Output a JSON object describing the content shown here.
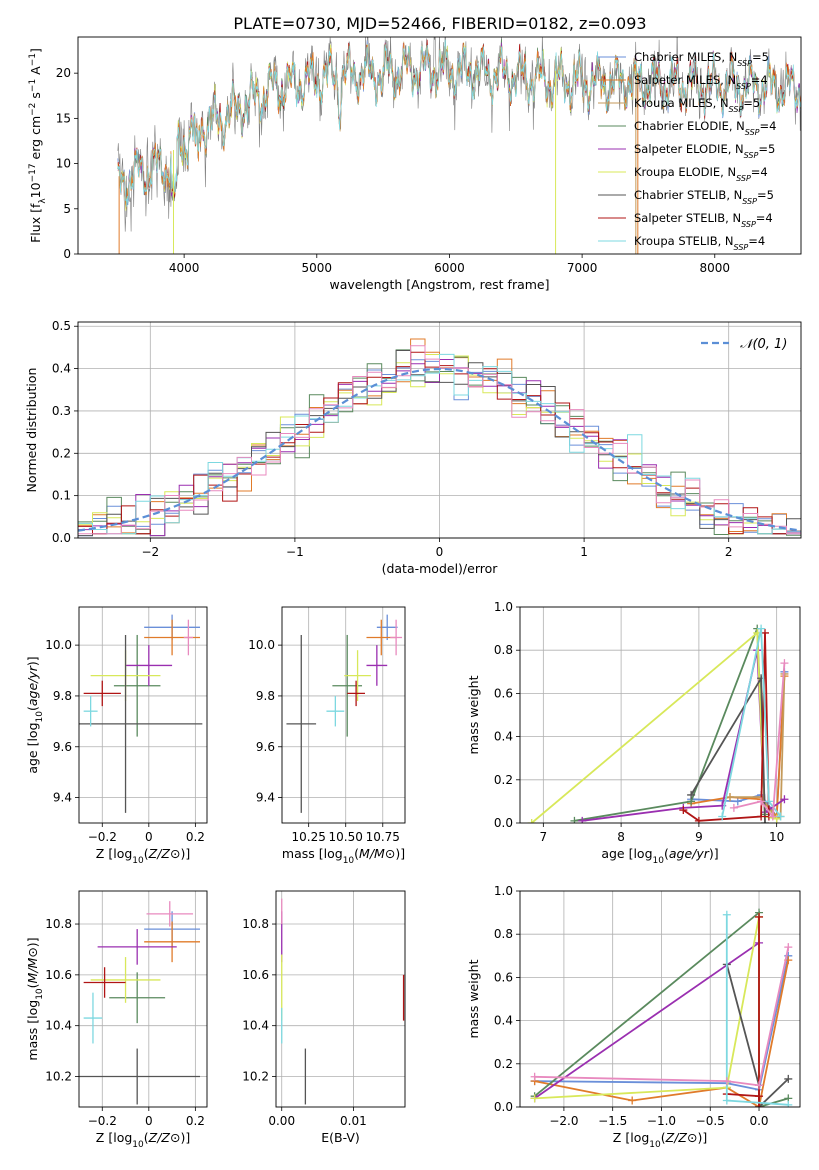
{
  "title": "PLATE=0730, MJD=52466, FIBERID=0182, z=0.093",
  "colors": {
    "Chabrier MILES": "#6a8fd9",
    "Salpeter MILES": "#e07b2a",
    "Kroupa MILES": "#c49a5a",
    "Chabrier ELODIE": "#5a8a5e",
    "Salpeter ELODIE": "#9a2fb0",
    "Kroupa ELODIE": "#d8e85a",
    "Chabrier STELIB": "#555555",
    "Salpeter STELIB": "#b01515",
    "Kroupa STELIB": "#7dd8e0",
    "Extra": "#e88abf",
    "Normal": "#5b8fd6"
  },
  "chart_data": [
    {
      "id": "spectrum",
      "type": "line",
      "title": "PLATE=0730, MJD=52466, FIBERID=0182, z=0.093",
      "xlabel": "wavelength [Angstrom, rest frame]",
      "ylabel": "Flux [f_λ10^-17 erg cm^-2 s^-1 A^-1]",
      "xlim": [
        3200,
        8650
      ],
      "ylim": [
        0,
        24
      ],
      "xticks": [
        4000,
        5000,
        6000,
        7000,
        8000
      ],
      "yticks": [
        0,
        5,
        10,
        15,
        20
      ],
      "grid": false,
      "legend_position": "top-right",
      "series": [
        {
          "name": "Chabrier MILES, N_SSP=5"
        },
        {
          "name": "Salpeter MILES, N_SSP=4"
        },
        {
          "name": "Kroupa MILES, N_SSP=5"
        },
        {
          "name": "Chabrier ELODIE, N_SSP=4"
        },
        {
          "name": "Salpeter ELODIE, N_SSP=5"
        },
        {
          "name": "Kroupa ELODIE, N_SSP=4"
        },
        {
          "name": "Chabrier STELIB, N_SSP=5"
        },
        {
          "name": "Salpeter STELIB, N_SSP=4"
        },
        {
          "name": "Kroupa STELIB, N_SSP=4"
        }
      ],
      "continuum": [
        [
          3500,
          7.5
        ],
        [
          3650,
          9
        ],
        [
          3800,
          9.5
        ],
        [
          3900,
          10
        ],
        [
          4000,
          12.5
        ],
        [
          4100,
          14
        ],
        [
          4300,
          15
        ],
        [
          4500,
          17
        ],
        [
          4700,
          18.5
        ],
        [
          4900,
          19
        ],
        [
          5000,
          19.5
        ],
        [
          5200,
          19.8
        ],
        [
          5500,
          20
        ],
        [
          5800,
          20.5
        ],
        [
          6000,
          20.3
        ],
        [
          6300,
          20
        ],
        [
          6600,
          19.5
        ],
        [
          7000,
          19
        ],
        [
          7400,
          19
        ],
        [
          7800,
          18.8
        ],
        [
          8300,
          18.5
        ],
        [
          8650,
          18.3
        ]
      ]
    },
    {
      "id": "residuals",
      "type": "step",
      "xlabel": "(data-model)/error",
      "ylabel": "Normed distribution",
      "xlim": [
        -2.5,
        2.5
      ],
      "ylim": [
        0,
        0.51
      ],
      "xticks": [
        -2,
        -1,
        0,
        1,
        2
      ],
      "yticks": [
        0.0,
        0.1,
        0.2,
        0.3,
        0.4,
        0.5
      ],
      "grid": true,
      "legend_position": "top-right",
      "normal_label": "𝒩(0, 1)"
    },
    {
      "id": "age-vs-Z",
      "type": "errorbar",
      "xlabel": "Z [log10(Z/Z⊙)]",
      "ylabel": "age  [log10(age/yr)]",
      "xlim": [
        -0.3,
        0.25
      ],
      "ylim": [
        9.3,
        10.15
      ],
      "xticks": [
        -0.2,
        0.0,
        0.2
      ],
      "yticks": [
        9.4,
        9.6,
        9.8,
        10.0
      ],
      "grid": true,
      "points": [
        {
          "color": "Chabrier MILES",
          "x": 0.1,
          "xerr": 0.12,
          "y": 10.07,
          "yerr": 0.05
        },
        {
          "color": "Salpeter MILES",
          "x": 0.1,
          "xerr": 0.12,
          "y": 10.03,
          "yerr": 0.07
        },
        {
          "color": "Extra",
          "x": 0.17,
          "xerr": 0.02,
          "y": 10.03,
          "yerr": 0.07
        },
        {
          "color": "Chabrier ELODIE",
          "x": -0.05,
          "xerr": 0.1,
          "y": 9.84,
          "yerr": 0.2
        },
        {
          "color": "Salpeter ELODIE",
          "x": 0.0,
          "xerr": 0.1,
          "y": 9.92,
          "yerr": 0.08
        },
        {
          "color": "Kroupa ELODIE",
          "x": -0.1,
          "xerr": 0.15,
          "y": 9.88,
          "yerr": 0.1
        },
        {
          "color": "Chabrier STELIB",
          "x": -0.1,
          "xerr": 0.33,
          "y": 9.69,
          "yerr": 0.35
        },
        {
          "color": "Salpeter STELIB",
          "x": -0.2,
          "xerr": 0.08,
          "y": 9.81,
          "yerr": 0.05
        },
        {
          "color": "Kroupa STELIB",
          "x": -0.25,
          "xerr": 0.03,
          "y": 9.74,
          "yerr": 0.06
        }
      ]
    },
    {
      "id": "age-vs-mass",
      "type": "errorbar",
      "xlabel": "mass [log10(M/M⊙)]",
      "ylabel": "",
      "xlim": [
        10.07,
        10.9
      ],
      "ylim": [
        9.3,
        10.15
      ],
      "xticks": [
        10.25,
        10.5,
        10.75
      ],
      "xticklabels": [
        "10.25",
        "10.50",
        "10.75"
      ],
      "yticks": [
        9.4,
        9.6,
        9.8,
        10.0
      ],
      "grid": true,
      "points": [
        {
          "color": "Chabrier MILES",
          "x": 10.78,
          "xerr": 0.07,
          "y": 10.07,
          "yerr": 0.05
        },
        {
          "color": "Salpeter MILES",
          "x": 10.74,
          "xerr": 0.1,
          "y": 10.03,
          "yerr": 0.07
        },
        {
          "color": "Extra",
          "x": 10.84,
          "xerr": 0.04,
          "y": 10.03,
          "yerr": 0.07
        },
        {
          "color": "Chabrier ELODIE",
          "x": 10.51,
          "xerr": 0.1,
          "y": 9.84,
          "yerr": 0.2
        },
        {
          "color": "Salpeter ELODIE",
          "x": 10.71,
          "xerr": 0.07,
          "y": 9.92,
          "yerr": 0.08
        },
        {
          "color": "Kroupa ELODIE",
          "x": 10.58,
          "xerr": 0.09,
          "y": 9.88,
          "yerr": 0.1
        },
        {
          "color": "Chabrier STELIB",
          "x": 10.2,
          "xerr": 0.1,
          "y": 9.69,
          "yerr": 0.35
        },
        {
          "color": "Salpeter STELIB",
          "x": 10.57,
          "xerr": 0.06,
          "y": 9.81,
          "yerr": 0.05
        },
        {
          "color": "Kroupa STELIB",
          "x": 10.43,
          "xerr": 0.06,
          "y": 9.74,
          "yerr": 0.06
        }
      ]
    },
    {
      "id": "mass-weight-vs-age",
      "type": "line",
      "xlabel": "age  [log10(age/yr)]",
      "ylabel": "mass weight",
      "xlim": [
        6.7,
        10.3
      ],
      "ylim": [
        0,
        1
      ],
      "xticks": [
        7,
        8,
        9,
        10
      ],
      "yticks": [
        0.0,
        0.2,
        0.4,
        0.6,
        0.8,
        1.0
      ],
      "grid": true,
      "series": [
        {
          "color": "Chabrier MILES",
          "points": [
            [
              8.9,
              0.11
            ],
            [
              9.5,
              0.1
            ],
            [
              9.8,
              0.13
            ],
            [
              10.0,
              0.03
            ],
            [
              10.1,
              0.7
            ]
          ]
        },
        {
          "color": "Salpeter MILES",
          "points": [
            [
              8.9,
              0.09
            ],
            [
              9.4,
              0.12
            ],
            [
              9.8,
              0.11
            ],
            [
              10.0,
              0.03
            ],
            [
              10.1,
              0.68
            ]
          ]
        },
        {
          "color": "Kroupa MILES",
          "points": [
            [
              9.4,
              0.12
            ],
            [
              9.8,
              0.12
            ],
            [
              10.0,
              0.02
            ],
            [
              10.05,
              0.03
            ],
            [
              10.1,
              0.69
            ]
          ]
        },
        {
          "color": "Chabrier ELODIE",
          "points": [
            [
              7.4,
              0.01
            ],
            [
              8.9,
              0.1
            ],
            [
              9.75,
              0.9
            ],
            [
              9.85,
              0.04
            ]
          ]
        },
        {
          "color": "Salpeter ELODIE",
          "points": [
            [
              7.5,
              0.01
            ],
            [
              8.8,
              0.07
            ],
            [
              9.3,
              0.08
            ],
            [
              9.75,
              0.8
            ],
            [
              9.85,
              0.05
            ],
            [
              10.1,
              0.11
            ]
          ]
        },
        {
          "color": "Kroupa ELODIE",
          "points": [
            [
              6.85,
              0.0
            ],
            [
              9.75,
              0.88
            ],
            [
              9.85,
              0.03
            ],
            [
              10.0,
              0.02
            ]
          ]
        },
        {
          "color": "Chabrier STELIB",
          "points": [
            [
              8.9,
              0.13
            ],
            [
              9.8,
              0.67
            ],
            [
              9.85,
              0.0
            ]
          ]
        },
        {
          "color": "Salpeter STELIB",
          "points": [
            [
              8.8,
              0.06
            ],
            [
              9.0,
              0.01
            ],
            [
              9.8,
              0.03
            ],
            [
              9.85,
              0.88
            ],
            [
              9.9,
              0.03
            ]
          ]
        },
        {
          "color": "Kroupa STELIB",
          "points": [
            [
              9.3,
              0.03
            ],
            [
              9.8,
              0.9
            ],
            [
              9.9,
              0.1
            ],
            [
              10.05,
              0.03
            ]
          ]
        },
        {
          "color": "Extra",
          "points": [
            [
              9.45,
              0.07
            ],
            [
              9.8,
              0.1
            ],
            [
              9.95,
              0.03
            ],
            [
              10.1,
              0.74
            ]
          ]
        }
      ]
    },
    {
      "id": "mass-vs-Z",
      "type": "errorbar",
      "xlabel": "Z [log10(Z/Z⊙)]",
      "ylabel": "mass [log10(M/M⊙)]",
      "xlim": [
        -0.3,
        0.25
      ],
      "ylim": [
        10.08,
        10.93
      ],
      "xticks": [
        -0.2,
        0.0,
        0.2
      ],
      "yticks": [
        10.2,
        10.4,
        10.6,
        10.8
      ],
      "grid": true,
      "points": [
        {
          "color": "Chabrier MILES",
          "x": 0.1,
          "xerr": 0.12,
          "y": 10.78,
          "yerr": 0.07
        },
        {
          "color": "Salpeter MILES",
          "x": 0.1,
          "xerr": 0.12,
          "y": 10.73,
          "yerr": 0.08
        },
        {
          "color": "Extra",
          "x": 0.09,
          "xerr": 0.1,
          "y": 10.84,
          "yerr": 0.05
        },
        {
          "color": "Chabrier ELODIE",
          "x": -0.05,
          "xerr": 0.12,
          "y": 10.51,
          "yerr": 0.1
        },
        {
          "color": "Salpeter ELODIE",
          "x": -0.05,
          "xerr": 0.17,
          "y": 10.71,
          "yerr": 0.07
        },
        {
          "color": "Kroupa ELODIE",
          "x": -0.1,
          "xerr": 0.15,
          "y": 10.58,
          "yerr": 0.09
        },
        {
          "color": "Chabrier STELIB",
          "x": -0.05,
          "xerr": 0.27,
          "y": 10.2,
          "yerr": 0.11
        },
        {
          "color": "Salpeter STELIB",
          "x": -0.19,
          "xerr": 0.09,
          "y": 10.57,
          "yerr": 0.06
        },
        {
          "color": "Kroupa STELIB",
          "x": -0.24,
          "xerr": 0.04,
          "y": 10.43,
          "yerr": 0.1
        }
      ]
    },
    {
      "id": "mass-vs-EBV",
      "type": "errorbar",
      "xlabel": "E(B-V)",
      "ylabel": "",
      "xlim": [
        -0.0008,
        0.0172
      ],
      "ylim": [
        10.08,
        10.93
      ],
      "xticks": [
        0.0,
        0.01
      ],
      "xticklabels": [
        "0.00",
        "0.01"
      ],
      "yticks": [
        10.2,
        10.4,
        10.6,
        10.8
      ],
      "grid": true,
      "points": [
        {
          "color": "Salpeter ELODIE",
          "x": 0.0,
          "xerr": 0,
          "y": 10.75,
          "yerr": 0.1
        },
        {
          "color": "Kroupa ELODIE",
          "x": 0.0,
          "xerr": 0,
          "y": 10.55,
          "yerr": 0.13
        },
        {
          "color": "Kroupa STELIB",
          "x": 0.0,
          "xerr": 0,
          "y": 10.4,
          "yerr": 0.07
        },
        {
          "color": "Extra",
          "x": 0.0,
          "xerr": 0,
          "y": 10.85,
          "yerr": 0.05
        },
        {
          "color": "Chabrier STELIB",
          "x": 0.0033,
          "xerr": 0,
          "y": 10.2,
          "yerr": 0.11
        },
        {
          "color": "Salpeter STELIB",
          "x": 0.017,
          "xerr": 0,
          "y": 10.51,
          "yerr": 0.09
        }
      ]
    },
    {
      "id": "mass-weight-vs-Z",
      "type": "line",
      "xlabel": "Z [log10(Z/Z⊙)]",
      "ylabel": "mass weight",
      "xlim": [
        -2.45,
        0.42
      ],
      "ylim": [
        0,
        1
      ],
      "xticks": [
        -2.0,
        -1.5,
        -1.0,
        -0.5,
        0.0
      ],
      "xticklabels": [
        "−2.0",
        "−1.5",
        "−1.0",
        "−0.5",
        "0.0"
      ],
      "yticks": [
        0.0,
        0.2,
        0.4,
        0.6,
        0.8,
        1.0
      ],
      "grid": true,
      "series": [
        {
          "color": "Chabrier MILES",
          "points": [
            [
              -2.3,
              0.12
            ],
            [
              -0.33,
              0.11
            ],
            [
              0.0,
              0.08
            ],
            [
              0.3,
              0.7
            ]
          ]
        },
        {
          "color": "Salpeter MILES",
          "points": [
            [
              -2.3,
              0.12
            ],
            [
              -1.3,
              0.03
            ],
            [
              -0.33,
              0.09
            ],
            [
              0.0,
              0.0
            ],
            [
              0.3,
              0.68
            ]
          ]
        },
        {
          "color": "Chabrier ELODIE",
          "points": [
            [
              -2.3,
              0.05
            ],
            [
              0.0,
              0.9
            ],
            [
              0.0,
              0.0
            ],
            [
              0.3,
              0.04
            ]
          ]
        },
        {
          "color": "Salpeter ELODIE",
          "points": [
            [
              -2.3,
              0.04
            ],
            [
              0.0,
              0.76
            ],
            [
              0.0,
              0.0
            ]
          ]
        },
        {
          "color": "Kroupa ELODIE",
          "points": [
            [
              -2.3,
              0.04
            ],
            [
              -0.33,
              0.09
            ],
            [
              0.0,
              0.88
            ],
            [
              0.0,
              0.0
            ]
          ]
        },
        {
          "color": "Chabrier STELIB",
          "points": [
            [
              -0.33,
              0.66
            ],
            [
              0.0,
              0.1
            ],
            [
              0.0,
              0.0
            ],
            [
              0.3,
              0.13
            ]
          ]
        },
        {
          "color": "Salpeter STELIB",
          "points": [
            [
              -0.33,
              0.06
            ],
            [
              0.0,
              0.05
            ],
            [
              0.0,
              0.88
            ],
            [
              0.0,
              0.0
            ]
          ]
        },
        {
          "color": "Kroupa STELIB",
          "points": [
            [
              -0.33,
              0.89
            ],
            [
              -0.33,
              0.03
            ],
            [
              0.3,
              0.01
            ]
          ]
        },
        {
          "color": "Extra",
          "points": [
            [
              -2.3,
              0.14
            ],
            [
              -0.33,
              0.12
            ],
            [
              0.0,
              0.1
            ],
            [
              0.3,
              0.74
            ]
          ]
        }
      ]
    }
  ]
}
